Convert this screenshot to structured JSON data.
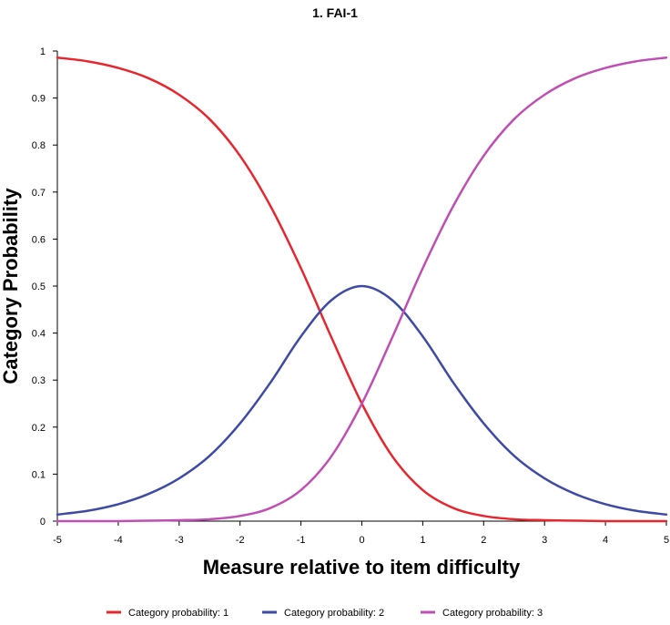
{
  "chart_data": {
    "type": "line",
    "title": "1. FAI-1",
    "xlabel": "Measure relative to item difficulty",
    "ylabel": "Category Probability",
    "xlim": [
      -5,
      5
    ],
    "ylim": [
      0,
      1
    ],
    "grid": false,
    "legend_position": "bottom",
    "x_ticks": [
      "-5",
      "-4",
      "-3",
      "-2",
      "-1",
      "0",
      "1",
      "2",
      "3",
      "4",
      "5"
    ],
    "y_ticks": [
      "0",
      "0.1",
      "0.2",
      "0.3",
      "0.4",
      "0.5",
      "0.6",
      "0.7",
      "0.8",
      "0.9",
      "1"
    ],
    "x": [
      -5,
      -4.5,
      -4,
      -3.5,
      -3,
      -2.5,
      -2,
      -1.5,
      -1,
      -0.5,
      0,
      0.5,
      1,
      1.5,
      2,
      2.5,
      3,
      3.5,
      4,
      4.5,
      5
    ],
    "series": [
      {
        "name": "Category probability: 1",
        "color": "#e8262e",
        "values": [
          0.986,
          0.978,
          0.964,
          0.942,
          0.907,
          0.855,
          0.777,
          0.67,
          0.538,
          0.391,
          0.25,
          0.138,
          0.066,
          0.028,
          0.011,
          0.004,
          0.002,
          0.001,
          0.0,
          0.0,
          0.0
        ]
      },
      {
        "name": "Category probability: 2",
        "color": "#3d4ba6",
        "values": [
          0.014,
          0.022,
          0.036,
          0.058,
          0.091,
          0.139,
          0.208,
          0.295,
          0.393,
          0.47,
          0.5,
          0.47,
          0.393,
          0.295,
          0.208,
          0.139,
          0.091,
          0.058,
          0.036,
          0.022,
          0.014
        ]
      },
      {
        "name": "Category probability: 3",
        "color": "#c04fb5",
        "values": [
          0.0,
          0.0,
          0.0,
          0.001,
          0.002,
          0.004,
          0.011,
          0.028,
          0.066,
          0.138,
          0.25,
          0.391,
          0.538,
          0.67,
          0.777,
          0.855,
          0.907,
          0.942,
          0.964,
          0.978,
          0.986
        ]
      }
    ]
  }
}
